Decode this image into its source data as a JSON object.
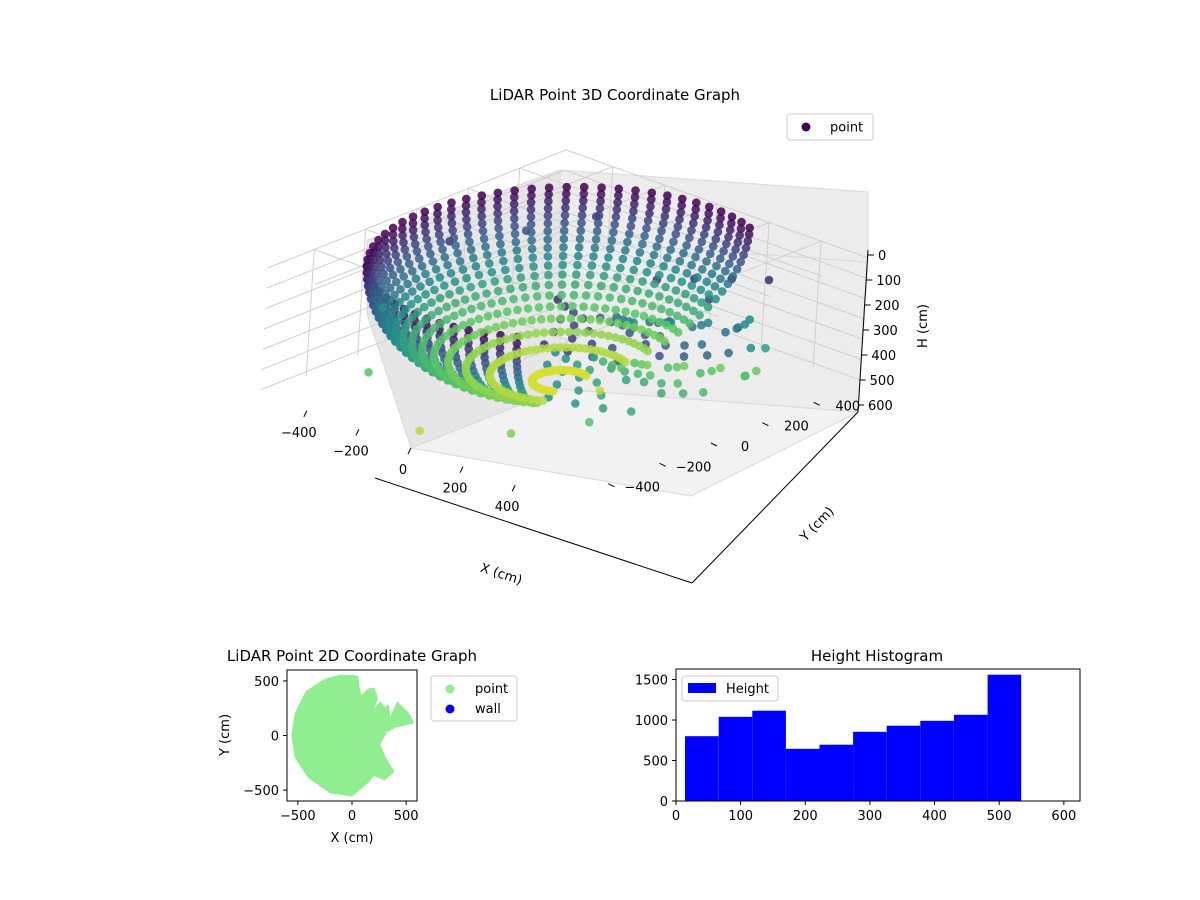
{
  "figure": {
    "background": "#ffffff"
  },
  "chart_data": [
    {
      "type": "scatter",
      "dimension": "3d",
      "title": "LiDAR Point 3D Coordinate Graph",
      "xlabel": "X (cm)",
      "ylabel": "Y (cm)",
      "zlabel": "H (cm)",
      "xticks": [
        -400,
        -200,
        0,
        200,
        400
      ],
      "yticks": [
        -400,
        -200,
        0,
        200,
        400
      ],
      "zticks": [
        0,
        100,
        200,
        300,
        400,
        500,
        600
      ],
      "xlim": [
        -580,
        580
      ],
      "ylim": [
        -580,
        580
      ],
      "zlim": [
        0,
        620
      ],
      "z_inverted": true,
      "colormap": "viridis",
      "colormap_stops": [
        "#440154",
        "#3b528b",
        "#21908d",
        "#5dc963",
        "#fde725"
      ],
      "grid": true,
      "legend": {
        "position": "top-right",
        "entries": [
          {
            "label": "point",
            "color": "#440154"
          }
        ]
      },
      "series": [
        {
          "name": "point",
          "description_shape": "partial hollow dome of points, radius ~550 cm, height 0-600 cm, plus scattered cluster toward +X",
          "sample_points": [
            [
              -450,
              0,
              100
            ],
            [
              -400,
              250,
              150
            ],
            [
              -300,
              420,
              120
            ],
            [
              -450,
              -250,
              300
            ],
            [
              -300,
              -450,
              450
            ],
            [
              0,
              -550,
              550
            ],
            [
              250,
              -450,
              500
            ],
            [
              400,
              -300,
              450
            ],
            [
              150,
              0,
              560
            ],
            [
              300,
              100,
              200
            ],
            [
              350,
              200,
              120
            ],
            [
              420,
              250,
              250
            ],
            [
              500,
              220,
              300
            ],
            [
              550,
              150,
              380
            ],
            [
              480,
              300,
              350
            ]
          ]
        }
      ]
    },
    {
      "type": "scatter",
      "title": "LiDAR Point 2D Coordinate Graph",
      "xlabel": "X (cm)",
      "ylabel": "Y (cm)",
      "xticks": [
        -500,
        0,
        500
      ],
      "yticks": [
        -500,
        0,
        500
      ],
      "xlim": [
        -600,
        600
      ],
      "ylim": [
        -600,
        600
      ],
      "grid": false,
      "legend": {
        "position": "outside-right",
        "entries": [
          {
            "label": "point",
            "color": "#90ee90"
          },
          {
            "label": "wall",
            "color": "#0000ff"
          }
        ]
      },
      "series": [
        {
          "name": "point",
          "color": "#90ee90",
          "description_shape": "filled disc of radius ~550 cm with gaps on the +X side",
          "outline": [
            [
              -550,
              0
            ],
            [
              -520,
              200
            ],
            [
              -420,
              400
            ],
            [
              -250,
              510
            ],
            [
              -100,
              550
            ],
            [
              50,
              540
            ],
            [
              60,
              450
            ],
            [
              80,
              350
            ],
            [
              150,
              420
            ],
            [
              200,
              430
            ],
            [
              230,
              340
            ],
            [
              180,
              200
            ],
            [
              260,
              300
            ],
            [
              300,
              250
            ],
            [
              330,
              270
            ],
            [
              350,
              150
            ],
            [
              420,
              300
            ],
            [
              520,
              200
            ],
            [
              560,
              120
            ],
            [
              400,
              80
            ],
            [
              320,
              40
            ],
            [
              250,
              -80
            ],
            [
              300,
              -200
            ],
            [
              380,
              -330
            ],
            [
              300,
              -400
            ],
            [
              200,
              -360
            ],
            [
              150,
              -420
            ],
            [
              0,
              -550
            ],
            [
              -200,
              -520
            ],
            [
              -400,
              -380
            ],
            [
              -520,
              -200
            ]
          ]
        },
        {
          "name": "wall",
          "color": "#0000ff",
          "points": []
        }
      ]
    },
    {
      "type": "bar",
      "subtype": "histogram",
      "title": "Height Histogram",
      "xlabel": "",
      "ylabel": "",
      "xticks": [
        0,
        100,
        200,
        300,
        400,
        500,
        600
      ],
      "yticks": [
        0,
        500,
        1000,
        1500
      ],
      "xlim": [
        0,
        625
      ],
      "ylim": [
        0,
        1630
      ],
      "grid": false,
      "legend": {
        "position": "top-left",
        "entries": [
          {
            "label": "Height",
            "color": "#0000ff"
          }
        ]
      },
      "series": [
        {
          "name": "Height",
          "color": "#0000ff",
          "bin_edges": [
            14,
            66,
            118,
            170,
            222,
            274,
            326,
            378,
            430,
            482,
            534
          ],
          "values": [
            800,
            1040,
            1115,
            645,
            695,
            855,
            930,
            990,
            1065,
            1560
          ]
        }
      ]
    }
  ]
}
